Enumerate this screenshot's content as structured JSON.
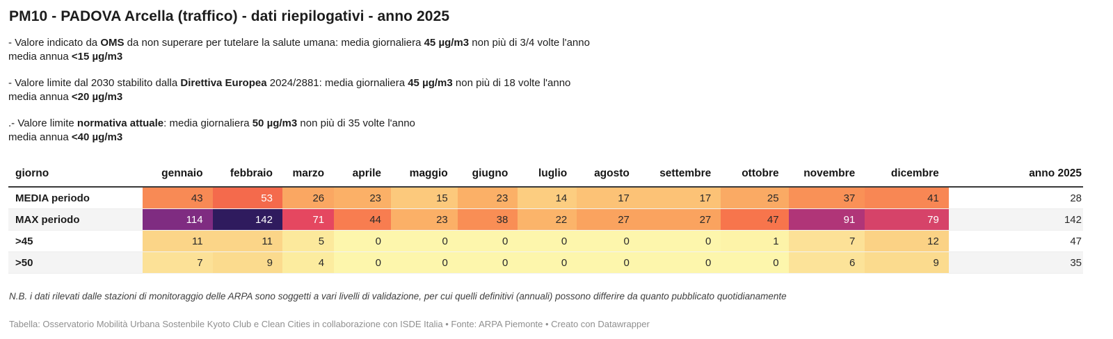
{
  "title": "PM10 - PADOVA Arcella (traffico) - dati riepilogativi - anno 2025",
  "paragraphs": [
    {
      "lines": [
        [
          {
            "t": "- Valore indicato da "
          },
          {
            "t": "OMS",
            "b": 1
          },
          {
            "t": " da non superare per tutelare la salute umana: media giornaliera "
          },
          {
            "t": "45 µg/m3",
            "b": 1
          },
          {
            "t": " non più di 3/4 volte l'anno"
          }
        ],
        [
          {
            "t": "media annua "
          },
          {
            "t": "<15 µg/m3",
            "b": 1
          }
        ]
      ]
    },
    {
      "lines": [
        [
          {
            "t": "- Valore limite dal 2030 stabilito dalla "
          },
          {
            "t": "Direttiva Europea",
            "b": 1
          },
          {
            "t": " 2024/2881: media giornaliera "
          },
          {
            "t": "45 µg/m3",
            "b": 1
          },
          {
            "t": " non più di 18 volte l'anno"
          }
        ],
        [
          {
            "t": "media annua "
          },
          {
            "t": "<20 µg/m3",
            "b": 1
          }
        ]
      ]
    },
    {
      "lines": [
        [
          {
            "t": ".- Valore limite "
          },
          {
            "t": "normativa attuale",
            "b": 1
          },
          {
            "t": ": media giornaliera "
          },
          {
            "t": "50 µg/m3",
            "b": 1
          },
          {
            "t": " non più di 35 volte l'anno"
          }
        ],
        [
          {
            "t": "media annua "
          },
          {
            "t": "<40 µg/m3",
            "b": 1
          }
        ]
      ]
    }
  ],
  "table": {
    "columns": [
      "giorno",
      "gennaio",
      "febbraio",
      "marzo",
      "aprile",
      "maggio",
      "giugno",
      "luglio",
      "agosto",
      "settembre",
      "ottobre",
      "novembre",
      "dicembre",
      "anno 2025"
    ],
    "rows": [
      {
        "label": "MEDIA periodo",
        "cells": [
          {
            "v": "43",
            "bg": "#f88a55",
            "fg": "#292929"
          },
          {
            "v": "53",
            "bg": "#f46a4c",
            "fg": "#ffffff"
          },
          {
            "v": "26",
            "bg": "#faa762",
            "fg": "#292929"
          },
          {
            "v": "23",
            "bg": "#fbb067",
            "fg": "#292929"
          },
          {
            "v": "15",
            "bg": "#fcc97c",
            "fg": "#292929"
          },
          {
            "v": "23",
            "bg": "#fbb067",
            "fg": "#292929"
          },
          {
            "v": "14",
            "bg": "#fccd80",
            "fg": "#292929"
          },
          {
            "v": "17",
            "bg": "#fcc276",
            "fg": "#292929"
          },
          {
            "v": "17",
            "bg": "#fcc276",
            "fg": "#292929"
          },
          {
            "v": "25",
            "bg": "#faaa64",
            "fg": "#292929"
          },
          {
            "v": "37",
            "bg": "#f99157",
            "fg": "#292929"
          },
          {
            "v": "41",
            "bg": "#f88754",
            "fg": "#292929"
          }
        ],
        "total": "28"
      },
      {
        "label": "MAX periodo",
        "cells": [
          {
            "v": "114",
            "bg": "#7f2c81",
            "fg": "#ffffff"
          },
          {
            "v": "142",
            "bg": "#2f1b5e",
            "fg": "#ffffff"
          },
          {
            "v": "71",
            "bg": "#e54760",
            "fg": "#ffffff"
          },
          {
            "v": "44",
            "bg": "#f87d50",
            "fg": "#292929"
          },
          {
            "v": "23",
            "bg": "#fbb067",
            "fg": "#292929"
          },
          {
            "v": "38",
            "bg": "#f98e55",
            "fg": "#292929"
          },
          {
            "v": "22",
            "bg": "#fbb46a",
            "fg": "#292929"
          },
          {
            "v": "27",
            "bg": "#faa35f",
            "fg": "#292929"
          },
          {
            "v": "27",
            "bg": "#faa35f",
            "fg": "#292929"
          },
          {
            "v": "47",
            "bg": "#f7754c",
            "fg": "#292929"
          },
          {
            "v": "91",
            "bg": "#b03578",
            "fg": "#ffffff"
          },
          {
            "v": "79",
            "bg": "#d64369",
            "fg": "#ffffff"
          }
        ],
        "total": "142"
      },
      {
        "label": ">45",
        "cells": [
          {
            "v": "11",
            "bg": "#fbd588",
            "fg": "#292929"
          },
          {
            "v": "11",
            "bg": "#fbd588",
            "fg": "#292929"
          },
          {
            "v": "5",
            "bg": "#fce99c",
            "fg": "#292929"
          },
          {
            "v": "0",
            "bg": "#fdf6ac",
            "fg": "#292929"
          },
          {
            "v": "0",
            "bg": "#fdf6ac",
            "fg": "#292929"
          },
          {
            "v": "0",
            "bg": "#fdf6ac",
            "fg": "#292929"
          },
          {
            "v": "0",
            "bg": "#fdf6ac",
            "fg": "#292929"
          },
          {
            "v": "0",
            "bg": "#fdf6ac",
            "fg": "#292929"
          },
          {
            "v": "0",
            "bg": "#fdf6ac",
            "fg": "#292929"
          },
          {
            "v": "1",
            "bg": "#fdf3a8",
            "fg": "#292929"
          },
          {
            "v": "7",
            "bg": "#fce197",
            "fg": "#292929"
          },
          {
            "v": "12",
            "bg": "#fbd285",
            "fg": "#292929"
          }
        ],
        "total": "47"
      },
      {
        "label": ">50",
        "cells": [
          {
            "v": "7",
            "bg": "#fce197",
            "fg": "#292929"
          },
          {
            "v": "9",
            "bg": "#fbdb8e",
            "fg": "#292929"
          },
          {
            "v": "4",
            "bg": "#fcec9f",
            "fg": "#292929"
          },
          {
            "v": "0",
            "bg": "#fdf6ac",
            "fg": "#292929"
          },
          {
            "v": "0",
            "bg": "#fdf6ac",
            "fg": "#292929"
          },
          {
            "v": "0",
            "bg": "#fdf6ac",
            "fg": "#292929"
          },
          {
            "v": "0",
            "bg": "#fdf6ac",
            "fg": "#292929"
          },
          {
            "v": "0",
            "bg": "#fdf6ac",
            "fg": "#292929"
          },
          {
            "v": "0",
            "bg": "#fdf6ac",
            "fg": "#292929"
          },
          {
            "v": "0",
            "bg": "#fdf6ac",
            "fg": "#292929"
          },
          {
            "v": "6",
            "bg": "#fce399",
            "fg": "#292929"
          },
          {
            "v": "9",
            "bg": "#fbdb8e",
            "fg": "#292929"
          }
        ],
        "total": "35"
      }
    ]
  },
  "footnote": "N.B. i dati rilevati dalle stazioni di monitoraggio delle ARPA sono soggetti a vari livelli di validazione, per cui quelli definitivi (annuali) possono differire da quanto pubblicato quotidianamente",
  "credit": {
    "separator": " • ",
    "parts": [
      {
        "text": "Tabella: Osservatorio Mobilità Urbana Sostenbile Kyoto Club e Clean Cities in collaborazione con ISDE Italia",
        "link": false
      },
      {
        "text": "Fonte: ARPA Piemonte",
        "link": true
      },
      {
        "text": "Creato con Datawrapper",
        "link": true
      }
    ]
  },
  "colors": {
    "stripe": "#f4f4f4",
    "header_rule": "#393939",
    "scale_low": "#fdf6ac",
    "scale_mid": "#f46a4c",
    "scale_high": "#2f1b5e"
  },
  "chart_data": {
    "type": "heatmap",
    "title": "PM10 - PADOVA Arcella (traffico) - dati riepilogativi - anno 2025",
    "categories": [
      "gennaio",
      "febbraio",
      "marzo",
      "aprile",
      "maggio",
      "giugno",
      "luglio",
      "agosto",
      "settembre",
      "ottobre",
      "novembre",
      "dicembre",
      "anno 2025"
    ],
    "row_header": "giorno",
    "series": [
      {
        "name": "MEDIA periodo",
        "values": [
          43,
          53,
          26,
          23,
          15,
          23,
          14,
          17,
          17,
          25,
          37,
          41,
          28
        ]
      },
      {
        "name": "MAX periodo",
        "values": [
          114,
          142,
          71,
          44,
          23,
          38,
          22,
          27,
          27,
          47,
          91,
          79,
          142
        ]
      },
      {
        "name": ">45",
        "values": [
          11,
          11,
          5,
          0,
          0,
          0,
          0,
          0,
          0,
          1,
          7,
          12,
          47
        ]
      },
      {
        "name": ">50",
        "values": [
          7,
          9,
          4,
          0,
          0,
          0,
          0,
          0,
          0,
          0,
          6,
          9,
          35
        ]
      }
    ],
    "color_domain": [
      0,
      142
    ],
    "legend": "none",
    "notes": "heatmap coloring applied to month columns only; 'anno 2025' column uncolored"
  }
}
